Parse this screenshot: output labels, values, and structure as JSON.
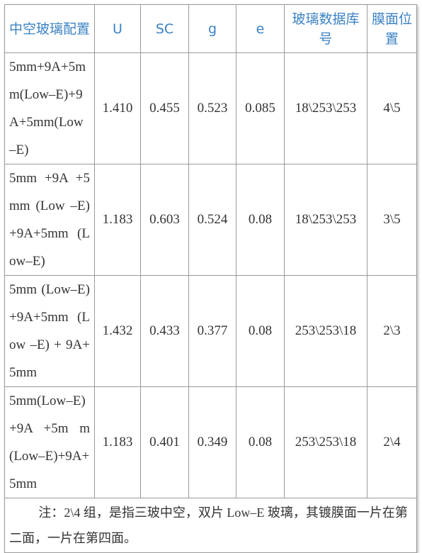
{
  "table": {
    "header": [
      "中空玻璃配置",
      "U",
      "SC",
      "g",
      "e",
      "玻璃数据库号",
      "膜面位置"
    ],
    "rows": [
      [
        "5mm+9A+5mm(Low–E)+9A+5mm(Low–E)",
        "1.410",
        "0.455",
        "0.523",
        "0.085",
        "18\\253\\253",
        "4\\5"
      ],
      [
        "5mm +9A +5mm (Low –E)+9A+5mm (Low–E)",
        "1.183",
        "0.603",
        "0.524",
        "0.08",
        "18\\253\\253",
        "3\\5"
      ],
      [
        "5mm (Low–E)+9A+5mm (Low –E) + 9A+5mm",
        "1.432",
        "0.433",
        "0.377",
        "0.08",
        "253\\253\\18",
        "2\\3"
      ],
      [
        "5mm(Low–E) +9A +5m m (Low–E)+9A+ 5mm",
        "1.183",
        "0.401",
        "0.349",
        "0.08",
        "253\\253\\18",
        "2\\4"
      ]
    ],
    "note": "注：2\\4 组，是指三玻中空，双片 Low–E 玻璃，其镀膜面一片在第二面，一片在第四面。"
  }
}
